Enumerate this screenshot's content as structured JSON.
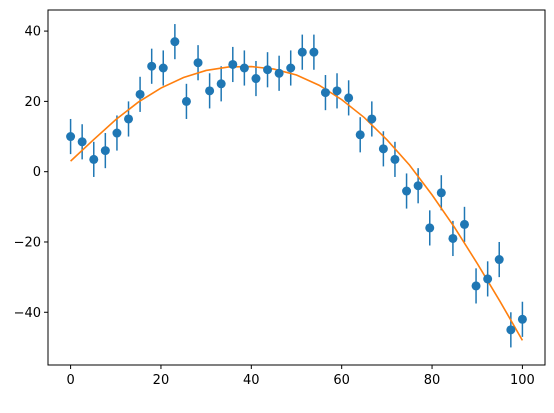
{
  "chart_data": {
    "type": "scatter",
    "title": "",
    "xlabel": "",
    "ylabel": "",
    "xlim": [
      -5,
      105
    ],
    "ylim": [
      -55,
      46
    ],
    "xticks": [
      0,
      20,
      40,
      60,
      80,
      100
    ],
    "yticks": [
      -40,
      -20,
      0,
      20,
      40
    ],
    "grid": false,
    "colors": {
      "points": "#1f77b4",
      "fit": "#ff7f0e"
    },
    "series": [
      {
        "kind": "errorbar",
        "x": [
          0.0,
          2.56,
          5.13,
          7.69,
          10.26,
          12.82,
          15.38,
          17.95,
          20.51,
          23.08,
          25.64,
          28.21,
          30.77,
          33.33,
          35.9,
          38.46,
          41.03,
          43.59,
          46.15,
          48.72,
          51.28,
          53.85,
          56.41,
          58.97,
          61.54,
          64.1,
          66.67,
          69.23,
          71.79,
          74.36,
          76.92,
          79.49,
          82.05,
          84.62,
          87.18,
          89.74,
          92.31,
          94.87,
          97.44,
          100.0
        ],
        "y": [
          10,
          8.5,
          3.5,
          6,
          11,
          15,
          22,
          30,
          29.5,
          37,
          20,
          31,
          23,
          25,
          30.5,
          29.5,
          26.5,
          29,
          28,
          29.5,
          34,
          34,
          22.5,
          23,
          21,
          10.5,
          15,
          6.5,
          3.5,
          -5.5,
          -4,
          -16,
          -6,
          -19,
          -15,
          -32.5,
          -30.5,
          -25,
          -45,
          -42
        ],
        "yerr": 5
      },
      {
        "kind": "line",
        "x": [
          0,
          5,
          10,
          15,
          20,
          25,
          30,
          35,
          40,
          45,
          50,
          55,
          60,
          65,
          70,
          75,
          80,
          85,
          90,
          95,
          100
        ],
        "y": [
          3.0,
          9.0,
          14.8,
          19.8,
          23.8,
          26.8,
          28.8,
          29.8,
          29.9,
          29.2,
          27.5,
          24.6,
          20.5,
          15.4,
          9.1,
          1.9,
          -6.6,
          -15.9,
          -26.1,
          -36.8,
          -48.0
        ]
      }
    ]
  }
}
